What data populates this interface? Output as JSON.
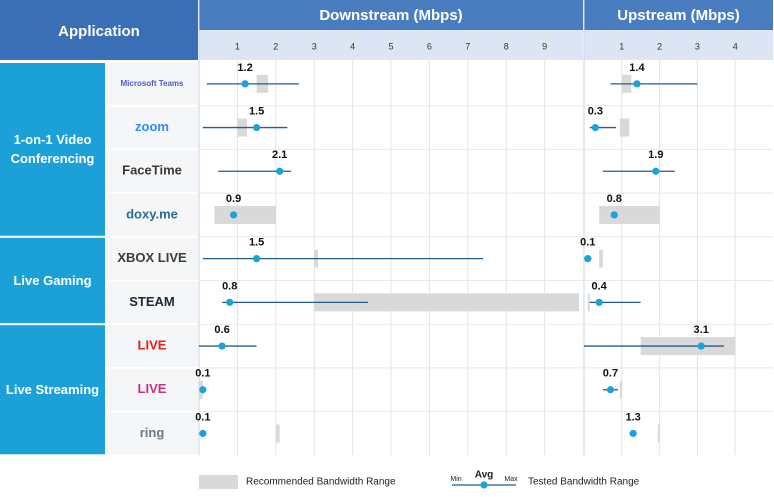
{
  "chart_data": {
    "type": "range-dot",
    "header": "Application",
    "panels": [
      {
        "title": "Downstream (Mbps)",
        "key": "down",
        "xlim": [
          0,
          10
        ],
        "xticks": [
          1,
          2,
          3,
          4,
          5,
          6,
          7,
          8,
          9
        ]
      },
      {
        "title": "Upstream (Mbps)",
        "key": "up",
        "xlim": [
          0,
          5
        ],
        "xticks": [
          1,
          2,
          3,
          4
        ]
      }
    ],
    "range_color": "#d9d9d9",
    "line_color": "#1f5e8e",
    "dot_color": "#1aa3d9",
    "group_color": "#1ba1d8",
    "groups": [
      {
        "name": "1-on-1 Video Conferencing",
        "apps": [
          {
            "label": "Microsoft Teams",
            "color": "#5059c9",
            "down": {
              "avg": 1.2,
              "min": 0.2,
              "max": 2.6,
              "recommended": [
                1.5,
                1.8
              ]
            },
            "up": {
              "avg": 1.4,
              "min": 0.7,
              "max": 3.0,
              "recommended": [
                1.0,
                1.25
              ]
            }
          },
          {
            "label": "zoom",
            "color": "#2d8cff",
            "down": {
              "avg": 1.5,
              "min": 0.1,
              "max": 2.3,
              "recommended": [
                1.0,
                1.25
              ]
            },
            "up": {
              "avg": 0.3,
              "min": 0.15,
              "max": 0.85,
              "recommended": [
                0.95,
                1.2
              ]
            }
          },
          {
            "label": "FaceTime",
            "color": "#3a3a3a",
            "down": {
              "avg": 2.1,
              "min": 0.5,
              "max": 2.4
            },
            "up": {
              "avg": 1.9,
              "min": 0.5,
              "max": 2.4
            }
          },
          {
            "label": "doxy.me",
            "color": "#2a6f8f",
            "down": {
              "avg": 0.9,
              "recommended": [
                0.4,
                2.0
              ]
            },
            "up": {
              "avg": 0.8,
              "recommended": [
                0.4,
                2.0
              ]
            }
          }
        ]
      },
      {
        "name": "Live Gaming",
        "apps": [
          {
            "label": "XBOX LIVE",
            "color": "#3c3c3c",
            "down": {
              "avg": 1.5,
              "min": 0.1,
              "max": 7.4,
              "recommended": [
                3.0,
                3.1
              ]
            },
            "up": {
              "avg": 0.1,
              "min": 0.03,
              "max": 0.2,
              "recommended": [
                0.4,
                0.5
              ]
            }
          },
          {
            "label": "STEAM",
            "color": "#1b2838",
            "down": {
              "avg": 0.8,
              "min": 0.6,
              "max": 4.4,
              "recommended": [
                3.0,
                9.9
              ]
            },
            "up": {
              "avg": 0.4,
              "min": 0.15,
              "max": 1.5,
              "recommended": [
                0.1,
                0.15
              ]
            }
          }
        ]
      },
      {
        "name": "Live Streaming",
        "apps": [
          {
            "label": "LIVE",
            "color": "#e62117",
            "down": {
              "avg": 0.6,
              "min": 0.0,
              "max": 1.5
            },
            "up": {
              "avg": 3.1,
              "min": 0.0,
              "max": 3.7,
              "recommended": [
                1.5,
                4.0
              ]
            }
          },
          {
            "label": "LIVE",
            "color": "#c13584",
            "down": {
              "avg": 0.1,
              "min": 0.05,
              "max": 0.15,
              "recommended": [
                0.0,
                0.1
              ]
            },
            "up": {
              "avg": 0.7,
              "min": 0.5,
              "max": 0.9,
              "recommended": [
                0.95,
                1.0
              ]
            }
          },
          {
            "label": "ring",
            "color": "#6b7a86",
            "down": {
              "avg": 0.1,
              "recommended": [
                2.0,
                2.1
              ]
            },
            "up": {
              "avg": 1.3,
              "min": 1.2,
              "max": 1.35,
              "recommended": [
                1.95,
                2.0
              ]
            }
          }
        ]
      }
    ],
    "legend": {
      "recommended": "Recommended Bandwidth Range",
      "min": "Min",
      "avg": "Avg",
      "max": "Max",
      "tested": "Tested Bandwidth Range"
    }
  }
}
